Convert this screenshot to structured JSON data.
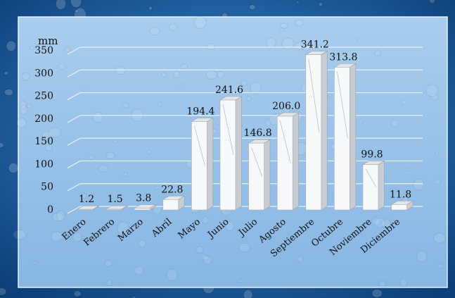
{
  "chart_data": {
    "type": "bar",
    "ylabel": "mm",
    "ylim": [
      0,
      350
    ],
    "yticks": [
      0,
      50,
      100,
      150,
      200,
      250,
      300,
      350
    ],
    "grid": true,
    "categories": [
      "Enero",
      "Febrero",
      "Marzo",
      "Abril",
      "Mayo",
      "Junio",
      "Julio",
      "Agosto",
      "Septiembre",
      "Octubre",
      "Noviembre",
      "Diciembre"
    ],
    "values": [
      1.2,
      1.5,
      3.8,
      22.8,
      194.4,
      241.6,
      146.8,
      206.0,
      341.2,
      313.8,
      99.8,
      11.8
    ],
    "value_labels": [
      "1.2",
      "1.5",
      "3.8",
      "22.8",
      "194.4",
      "241.6",
      "146.8",
      "206.0",
      "341.2",
      "313.8",
      "99.8",
      "11.8"
    ]
  },
  "colors": {
    "frame": "#1f63a8",
    "panel": "#8fbde6",
    "bar_front": "#f7f8fa",
    "bar_side": "#c9cdd3",
    "bar_top": "#e2e5e9",
    "gridline": "#e8f2fb",
    "text": "#111111"
  }
}
